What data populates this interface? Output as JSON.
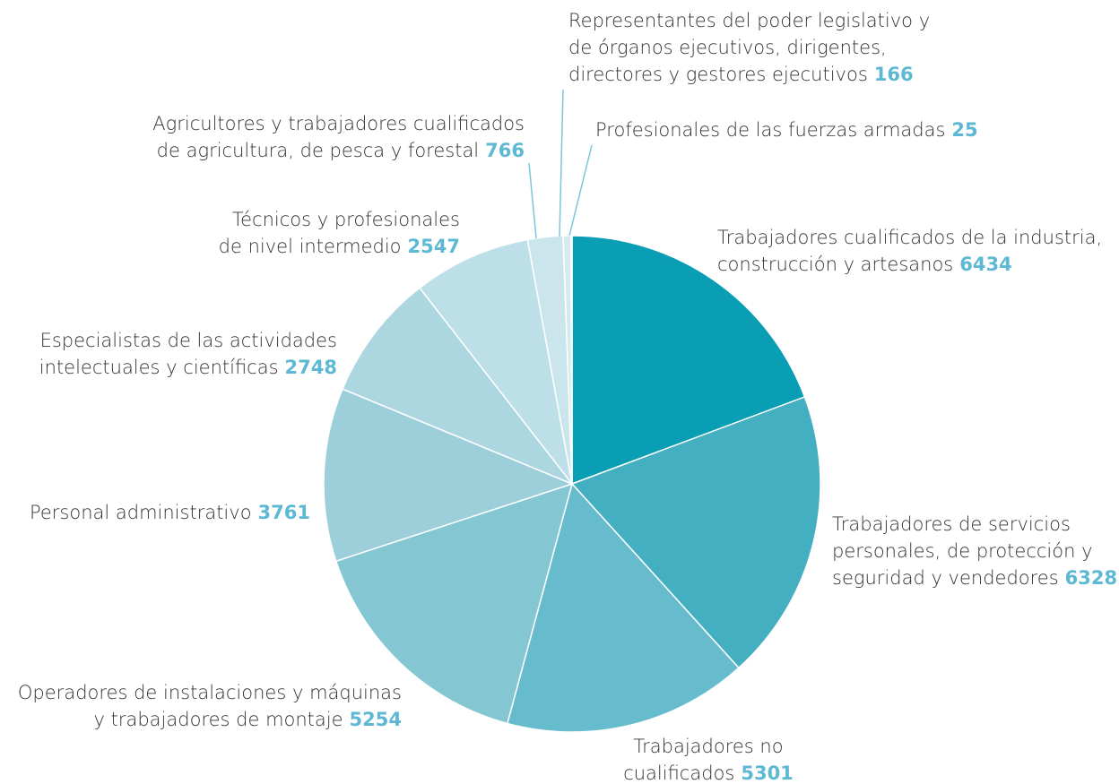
{
  "chart_data": {
    "type": "pie",
    "categories": [
      [
        "Trabajadores cualificados de la industria,",
        "construcción y artesanos"
      ],
      [
        "Trabajadores de servicios",
        "personales, de protección y",
        "seguridad y vendedores"
      ],
      [
        "Trabajadores no",
        "cualificados"
      ],
      [
        "Operadores de instalaciones y máquinas",
        "y trabajadores de montaje"
      ],
      [
        "Personal administrativo"
      ],
      [
        "Especialistas de las actividades",
        "intelectuales y científicas"
      ],
      [
        "Técnicos y profesionales",
        "de nivel intermedio"
      ],
      [
        "Agricultores y trabajadores cualificados",
        "de agricultura, de pesca y forestal"
      ],
      [
        "Representantes del poder legislativo y",
        "de órganos ejecutivos, dirigentes,",
        "directores y gestores ejecutivos"
      ],
      [
        "Profesionales de las fuerzas armadas"
      ]
    ],
    "values": [
      6434,
      6328,
      5301,
      5254,
      3761,
      2748,
      2547,
      766,
      166,
      25
    ],
    "colors": [
      "#0a9eb4",
      "#45afc2",
      "#66bccd",
      "#85c6d3",
      "#9dcfdb",
      "#acd6e0",
      "#bddfe7",
      "#cae5eb",
      "#d5eaef",
      "#dcedf1"
    ],
    "value_color": "#5db8d3"
  }
}
